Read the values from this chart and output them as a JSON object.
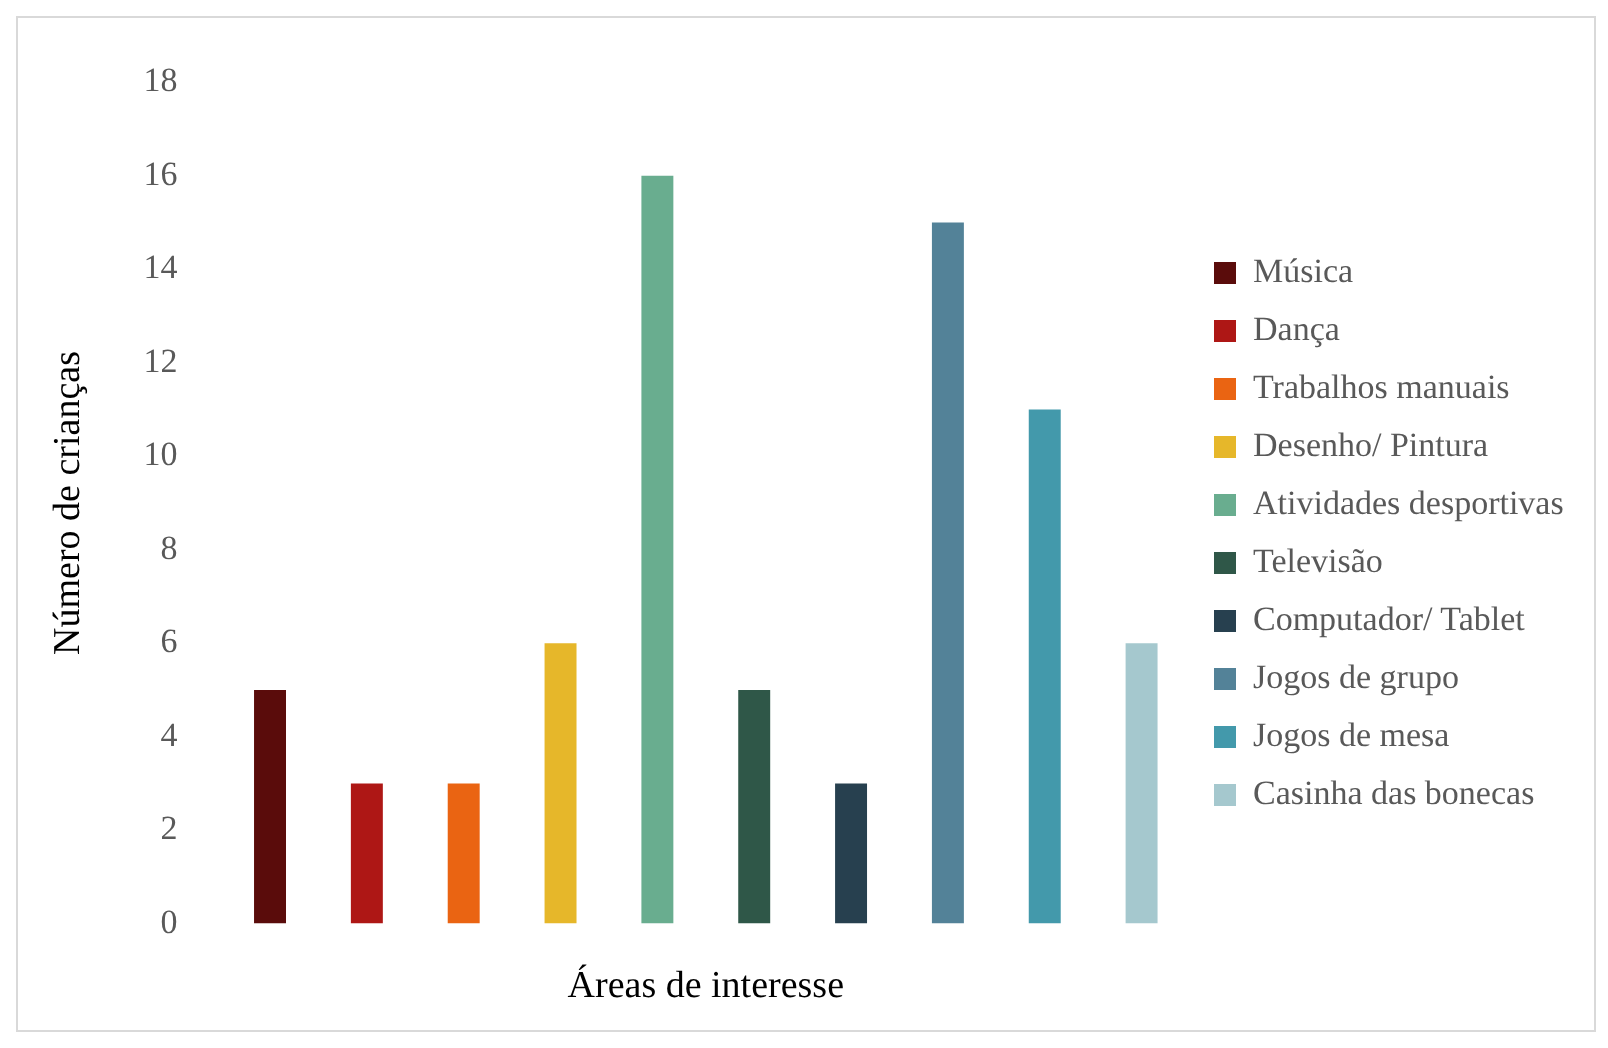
{
  "chart_data": {
    "type": "bar",
    "xlabel": "Áreas de interesse",
    "ylabel": "Número de crianças",
    "categories": [
      null,
      null,
      null,
      null,
      null,
      null,
      null,
      null,
      null,
      null
    ],
    "stacked": true,
    "series": [
      {
        "name": "Música",
        "color": "#5a0c0b",
        "values": [
          5,
          null,
          null,
          null,
          null,
          null,
          null,
          null,
          null,
          null
        ]
      },
      {
        "name": "Dança",
        "color": "#ae1715",
        "values": [
          null,
          3,
          null,
          null,
          null,
          null,
          null,
          null,
          null,
          null
        ]
      },
      {
        "name": "Trabalhos manuais",
        "color": "#ea6412",
        "values": [
          null,
          null,
          3,
          null,
          null,
          null,
          null,
          null,
          null,
          null
        ]
      },
      {
        "name": "Desenho/ Pintura",
        "color": "#e6b72a",
        "values": [
          null,
          null,
          null,
          6,
          null,
          null,
          null,
          null,
          null,
          null
        ]
      },
      {
        "name": "Atividades desportivas",
        "color": "#69ad8f",
        "values": [
          null,
          null,
          null,
          null,
          16,
          null,
          null,
          null,
          null,
          null
        ]
      },
      {
        "name": "Televisão",
        "color": "#2f5748",
        "values": [
          null,
          null,
          null,
          null,
          null,
          5,
          null,
          null,
          null,
          null
        ]
      },
      {
        "name": "Computador/ Tablet",
        "color": "#27404f",
        "values": [
          null,
          null,
          null,
          null,
          null,
          null,
          3,
          null,
          null,
          null
        ]
      },
      {
        "name": "Jogos de grupo",
        "color": "#538298",
        "values": [
          null,
          null,
          null,
          null,
          null,
          null,
          null,
          15,
          null,
          null
        ]
      },
      {
        "name": "Jogos de mesa",
        "color": "#4399ab",
        "values": [
          null,
          null,
          null,
          null,
          null,
          null,
          null,
          null,
          11,
          null
        ]
      },
      {
        "name": "Casinha das bonecas",
        "color": "#a5c8ce",
        "values": [
          null,
          null,
          null,
          null,
          null,
          null,
          null,
          null,
          null,
          6
        ]
      }
    ],
    "ylim": [
      0,
      18
    ],
    "yticks": [
      0,
      2,
      4,
      6,
      8,
      10,
      12,
      14,
      16,
      18
    ],
    "grid": false,
    "legend": "right"
  }
}
